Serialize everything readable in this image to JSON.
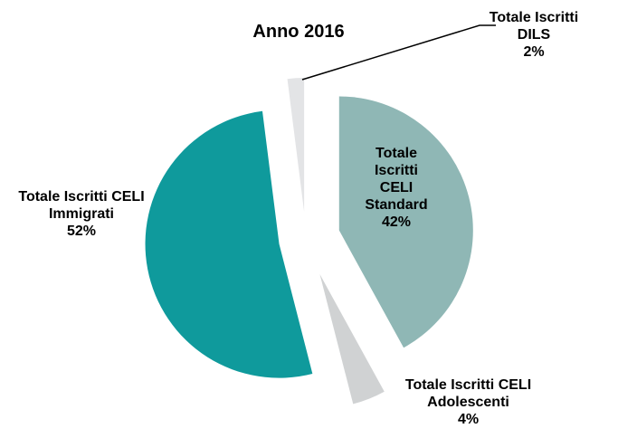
{
  "chart_data": {
    "type": "pie",
    "title": "Anno 2016",
    "categories": [
      "Totale Iscritti CELI Standard",
      "Totale Iscritti CELI Adolescenti",
      "Totale Iscritti CELI Immigrati",
      "Totale Iscritti DILS"
    ],
    "values": [
      42,
      4,
      52,
      2
    ],
    "value_labels": [
      "42%",
      "4%",
      "52%",
      "2%"
    ],
    "colors": [
      "#8fb7b5",
      "#d0d2d3",
      "#0f9a9c",
      "#e3e4e6"
    ]
  }
}
